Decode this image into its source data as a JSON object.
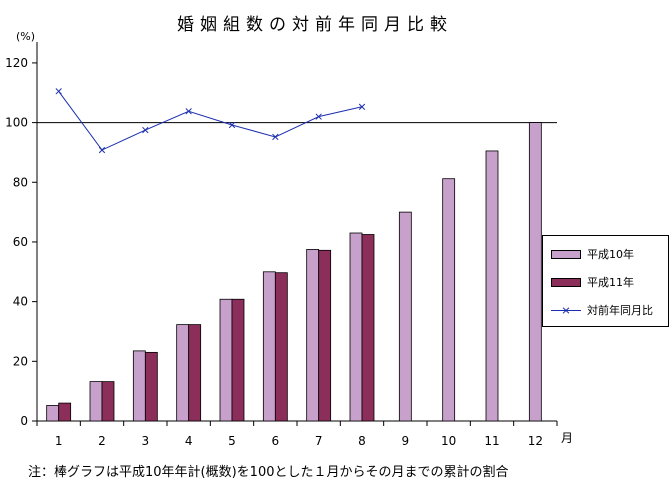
{
  "chart_data": {
    "type": "bar",
    "title": "婚姻組数の対前年同月比較",
    "ylabel": "(%)",
    "xlabel": "月",
    "ylim": [
      0,
      125
    ],
    "yticks": [
      0,
      20,
      40,
      60,
      80,
      100,
      120
    ],
    "categories": [
      "1",
      "2",
      "3",
      "4",
      "5",
      "6",
      "7",
      "8",
      "9",
      "10",
      "11",
      "12"
    ],
    "series": [
      {
        "name": "平成10年",
        "type": "bar",
        "color": "#c8a0cc",
        "values": [
          5.2,
          13.2,
          23.5,
          32.3,
          40.8,
          50.0,
          57.5,
          63.0,
          70.0,
          81.2,
          90.5,
          100.0
        ]
      },
      {
        "name": "平成11年",
        "type": "bar",
        "color": "#8b2e5a",
        "values": [
          6.0,
          13.2,
          23.0,
          32.3,
          40.8,
          49.7,
          57.2,
          62.5,
          null,
          null,
          null,
          null
        ]
      },
      {
        "name": "対前年同月比",
        "type": "line",
        "color": "#1c2fb0",
        "values": [
          110.5,
          90.8,
          97.5,
          103.8,
          99.2,
          95.2,
          102.0,
          105.3,
          null,
          null,
          null,
          null
        ]
      }
    ],
    "reference_line": 100,
    "note": "注：棒グラフは平成10年年計(概数)を100とした１月からその月までの累計の割合"
  }
}
